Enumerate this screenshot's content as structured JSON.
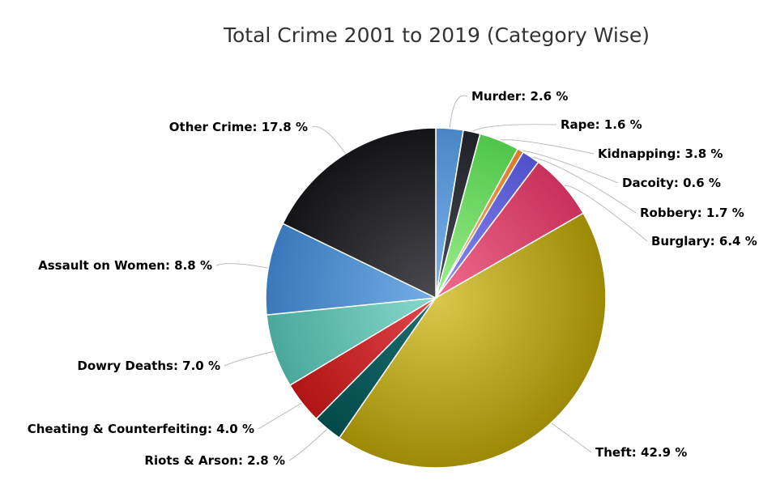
{
  "chart_data": {
    "type": "pie",
    "title": "Total Crime 2001 to 2019 (Category Wise)",
    "value_suffix": " %",
    "slices": [
      {
        "name": "Murder",
        "value": 2.6,
        "color_light": "#7db3ea",
        "color_dark": "#4a86c6"
      },
      {
        "name": "Rape",
        "value": 1.6,
        "color_light": "#4a4f57",
        "color_dark": "#1e2126"
      },
      {
        "name": "Kidnapping",
        "value": 3.8,
        "color_light": "#9ef08c",
        "color_dark": "#4fc54a"
      },
      {
        "name": "Dacoity",
        "value": 0.6,
        "color_light": "#f4b26a",
        "color_dark": "#d97a2a"
      },
      {
        "name": "Robbery",
        "value": 1.7,
        "color_light": "#8a8cf4",
        "color_dark": "#4f50c9"
      },
      {
        "name": "Burglary",
        "value": 6.4,
        "color_light": "#f06c8e",
        "color_dark": "#c8305a"
      },
      {
        "name": "Theft",
        "value": 42.9,
        "color_light": "#d9c84c",
        "color_dark": "#9c8a06"
      },
      {
        "name": "Riots & Arson",
        "value": 2.8,
        "color_light": "#1b6f70",
        "color_dark": "#03494a"
      },
      {
        "name": "Cheating & Counterfeiting",
        "value": 4.0,
        "color_light": "#e4464a",
        "color_dark": "#b01414"
      },
      {
        "name": "Dowry Deaths",
        "value": 7.0,
        "color_light": "#86d9cc",
        "color_dark": "#4aa89a"
      },
      {
        "name": "Assault on Women",
        "value": 8.8,
        "color_light": "#74aee6",
        "color_dark": "#3a78bb"
      },
      {
        "name": "Other Crime",
        "value": 17.8,
        "color_light": "#4a4a50",
        "color_dark": "#141416"
      }
    ]
  }
}
